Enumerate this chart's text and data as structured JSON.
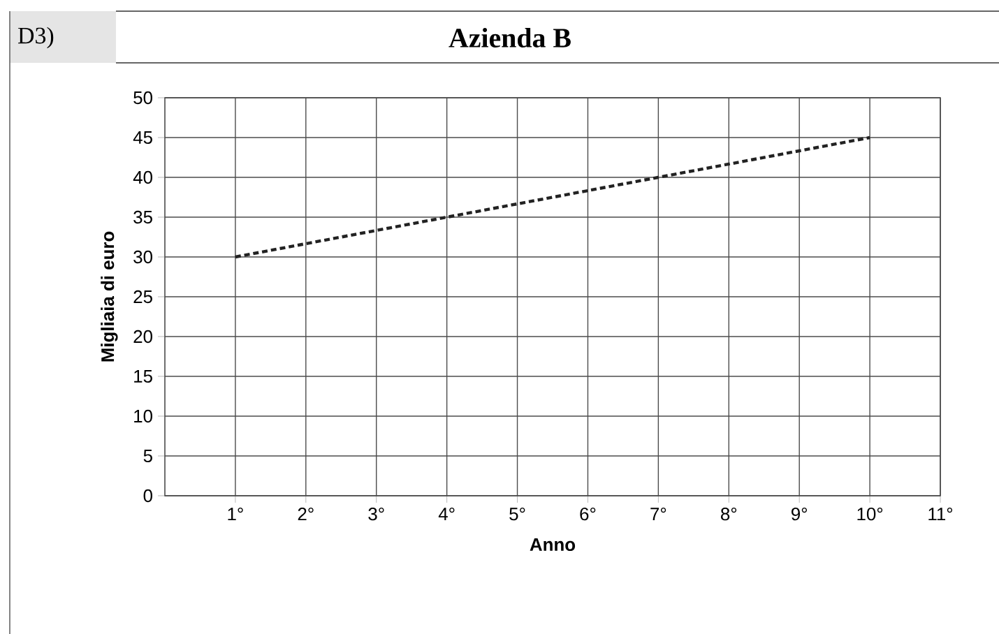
{
  "chart_data": {
    "type": "line",
    "title": "Azienda B",
    "annotations": [
      "D3)"
    ],
    "xlabel": "Anno",
    "ylabel": "Migliaia di euro",
    "x": [
      1,
      4,
      7,
      10
    ],
    "series": [
      {
        "color": "#222222",
        "values": [
          30,
          35,
          40,
          45
        ],
        "line_style": "dashed",
        "marker": "none"
      }
    ],
    "xlim": [
      0,
      11
    ],
    "xticks": [
      {
        "value": 1,
        "label": "1°"
      },
      {
        "value": 2,
        "label": "2°"
      },
      {
        "value": 3,
        "label": "3°"
      },
      {
        "value": 4,
        "label": "4°"
      },
      {
        "value": 5,
        "label": "5°"
      },
      {
        "value": 6,
        "label": "6°"
      },
      {
        "value": 7,
        "label": "7°"
      },
      {
        "value": 8,
        "label": "8°"
      },
      {
        "value": 9,
        "label": "9°"
      },
      {
        "value": 10,
        "label": "10°"
      },
      {
        "value": 11,
        "label": "11°"
      }
    ],
    "ylim": [
      0,
      50
    ],
    "yticks": [
      0,
      5,
      10,
      15,
      20,
      25,
      30,
      35,
      40,
      45,
      50
    ],
    "grid": true
  }
}
